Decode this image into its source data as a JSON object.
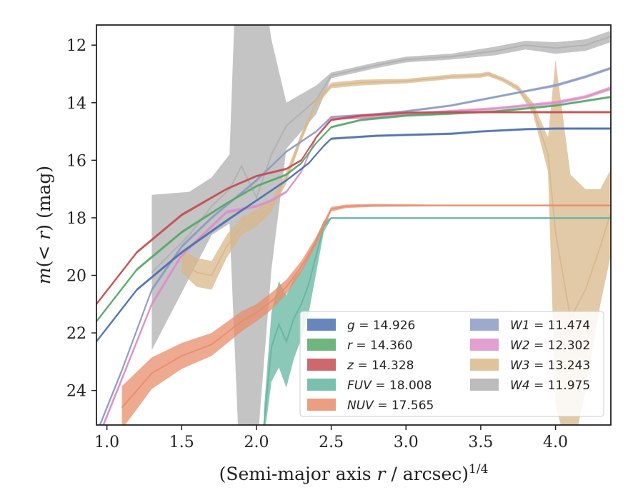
{
  "chart_data": {
    "type": "line",
    "xlabel": "(Semi-major axis r / arcsec)^{1/4}",
    "ylabel": "m(< r) (mag)",
    "xlim": [
      0.93,
      4.37
    ],
    "ylim": [
      25.2,
      11.3
    ],
    "y_inverted": true,
    "xticks": [
      "1.0",
      "1.5",
      "2.0",
      "2.5",
      "3.0",
      "3.5",
      "4.0"
    ],
    "yticks": [
      "12",
      "14",
      "16",
      "18",
      "20",
      "22",
      "24"
    ],
    "grid": false,
    "legend_placement": "lower-right",
    "series": [
      {
        "name": "g = 14.926",
        "color": "#4c72b0",
        "x": [
          0.93,
          1.2,
          1.5,
          1.8,
          2.0,
          2.2,
          2.35,
          2.45,
          2.5,
          2.8,
          3.0,
          3.3,
          3.5,
          3.8,
          4.0,
          4.37
        ],
        "y": [
          22.3,
          20.5,
          19.2,
          18.1,
          17.4,
          16.7,
          16.1,
          15.5,
          15.25,
          15.15,
          15.12,
          15.08,
          15.0,
          14.92,
          14.9,
          14.9
        ],
        "band": [
          0.05,
          0.05,
          0.05,
          0.05,
          0.04,
          0.04,
          0.04,
          0.04,
          0.04,
          0.04,
          0.04,
          0.04,
          0.04,
          0.04,
          0.04,
          0.04
        ]
      },
      {
        "name": "r = 14.360",
        "color": "#55a868",
        "x": [
          0.93,
          1.2,
          1.5,
          1.8,
          2.0,
          2.2,
          2.3,
          2.4,
          2.5,
          2.7,
          3.0,
          3.3,
          3.6,
          3.8,
          4.0,
          4.37
        ],
        "y": [
          21.6,
          19.8,
          18.5,
          17.5,
          16.9,
          16.5,
          16.1,
          15.4,
          14.85,
          14.6,
          14.45,
          14.38,
          14.3,
          14.2,
          14.1,
          13.8
        ],
        "band": [
          0.05,
          0.05,
          0.05,
          0.04,
          0.04,
          0.04,
          0.04,
          0.04,
          0.04,
          0.04,
          0.04,
          0.04,
          0.04,
          0.04,
          0.04,
          0.04
        ]
      },
      {
        "name": "z = 14.328",
        "color": "#c44e52",
        "x": [
          0.93,
          1.2,
          1.5,
          1.8,
          2.0,
          2.2,
          2.3,
          2.4,
          2.5,
          2.7,
          3.0,
          3.3,
          3.6,
          3.8,
          4.0,
          4.37
        ],
        "y": [
          21.0,
          19.2,
          17.9,
          17.0,
          16.55,
          16.3,
          16.0,
          15.2,
          14.6,
          14.45,
          14.35,
          14.33,
          14.33,
          14.33,
          14.33,
          14.33
        ],
        "band": [
          0.05,
          0.05,
          0.05,
          0.04,
          0.04,
          0.04,
          0.04,
          0.04,
          0.04,
          0.04,
          0.04,
          0.04,
          0.04,
          0.04,
          0.04,
          0.04
        ]
      },
      {
        "name": "FUV = 18.008",
        "color": "#64b5a0",
        "x": [
          2.05,
          2.1,
          2.15,
          2.2,
          2.25,
          2.3,
          2.35,
          2.4,
          2.45,
          2.5,
          2.8,
          3.2,
          3.6,
          4.0,
          4.37
        ],
        "y": [
          25.2,
          22.5,
          21.7,
          22.3,
          21.5,
          21.0,
          20.3,
          19.3,
          18.3,
          18.01,
          18.01,
          18.01,
          18.01,
          18.01,
          18.01
        ],
        "band": [
          0.5,
          1.2,
          1.5,
          1.6,
          1.4,
          1.2,
          1.0,
          0.6,
          0.2,
          0.03,
          0.03,
          0.03,
          0.03,
          0.03,
          0.03
        ]
      },
      {
        "name": "NUV = 17.565",
        "color": "#e88d6b",
        "x": [
          1.1,
          1.3,
          1.5,
          1.7,
          1.9,
          2.0,
          2.1,
          2.2,
          2.3,
          2.4,
          2.5,
          2.6,
          2.78,
          3.2,
          3.6,
          4.0,
          4.37
        ],
        "y": [
          24.6,
          23.4,
          22.8,
          22.4,
          21.6,
          21.3,
          20.9,
          20.4,
          19.7,
          18.8,
          17.7,
          17.6,
          17.57,
          17.57,
          17.57,
          17.57,
          17.57
        ],
        "band": [
          0.75,
          0.55,
          0.45,
          0.4,
          0.35,
          0.3,
          0.3,
          0.25,
          0.2,
          0.15,
          0.08,
          0.06,
          0.05,
          0.03,
          0.03,
          0.03,
          0.03
        ]
      },
      {
        "name": "W1 = 11.474",
        "color": "#8c9bc4",
        "x": [
          0.93,
          1.1,
          1.3,
          1.5,
          1.7,
          2.0,
          2.2,
          2.4,
          2.5,
          2.8,
          3.0,
          3.3,
          3.6,
          3.8,
          4.0,
          4.2,
          4.37
        ],
        "y": [
          25.5,
          23.3,
          20.5,
          19.0,
          18.0,
          16.7,
          15.7,
          15.0,
          14.5,
          14.4,
          14.3,
          14.1,
          13.8,
          13.6,
          13.4,
          13.1,
          12.8
        ],
        "band": [
          0.08,
          0.08,
          0.07,
          0.06,
          0.05,
          0.05,
          0.04,
          0.04,
          0.04,
          0.04,
          0.04,
          0.04,
          0.04,
          0.04,
          0.05,
          0.05,
          0.05
        ]
      },
      {
        "name": "W2 = 12.302",
        "color": "#dd8fc8",
        "x": [
          0.93,
          1.1,
          1.3,
          1.5,
          1.8,
          2.0,
          2.1,
          2.2,
          2.3,
          2.4,
          2.5,
          2.8,
          3.0,
          3.3,
          3.6,
          4.0,
          4.2,
          4.37
        ],
        "y": [
          25.8,
          23.6,
          21.0,
          19.3,
          17.8,
          17.6,
          17.4,
          17.1,
          16.4,
          15.2,
          14.55,
          14.5,
          14.4,
          14.3,
          14.2,
          14.0,
          13.8,
          13.5
        ],
        "band": [
          0.1,
          0.09,
          0.08,
          0.07,
          0.06,
          0.05,
          0.05,
          0.05,
          0.05,
          0.05,
          0.05,
          0.05,
          0.05,
          0.05,
          0.05,
          0.06,
          0.06,
          0.07
        ]
      },
      {
        "name": "W3 = 13.243",
        "color": "#d8b88c",
        "x": [
          1.5,
          1.6,
          1.7,
          1.8,
          1.9,
          2.0,
          2.1,
          2.2,
          2.3,
          2.4,
          2.5,
          2.7,
          3.0,
          3.3,
          3.5,
          3.55,
          3.65,
          3.75,
          3.85,
          3.95,
          4.0,
          4.1,
          4.2,
          4.3,
          4.37
        ],
        "y": [
          19.5,
          19.9,
          20.0,
          19.0,
          18.3,
          18.0,
          17.6,
          16.6,
          15.2,
          14.0,
          13.4,
          13.3,
          13.25,
          13.1,
          13.05,
          13.0,
          13.2,
          13.5,
          14.2,
          15.8,
          18.5,
          21.5,
          20.5,
          19.0,
          17.8
        ],
        "band": [
          0.4,
          0.5,
          0.5,
          0.4,
          0.3,
          0.3,
          0.2,
          0.2,
          0.15,
          0.1,
          0.1,
          0.1,
          0.08,
          0.08,
          0.08,
          0.08,
          0.08,
          0.1,
          0.2,
          0.6,
          6.0,
          5.0,
          3.5,
          2.0,
          1.5
        ]
      },
      {
        "name": "W4 = 11.975",
        "color": "#b0b0b0",
        "x": [
          1.3,
          1.55,
          1.7,
          1.82,
          1.9,
          2.0,
          2.1,
          2.2,
          2.4,
          2.5,
          2.8,
          3.0,
          3.3,
          3.6,
          3.8,
          4.0,
          4.2,
          4.37
        ],
        "y": [
          19.9,
          18.6,
          17.6,
          17.0,
          16.2,
          17.3,
          15.8,
          14.8,
          13.9,
          13.05,
          12.7,
          12.5,
          12.4,
          12.2,
          12.0,
          12.1,
          12.0,
          11.7
        ],
        "band": [
          2.7,
          1.5,
          1.0,
          1.2,
          12.0,
          9.0,
          4.0,
          0.8,
          0.5,
          0.1,
          0.1,
          0.1,
          0.1,
          0.15,
          0.15,
          0.2,
          0.2,
          0.2
        ]
      }
    ]
  }
}
